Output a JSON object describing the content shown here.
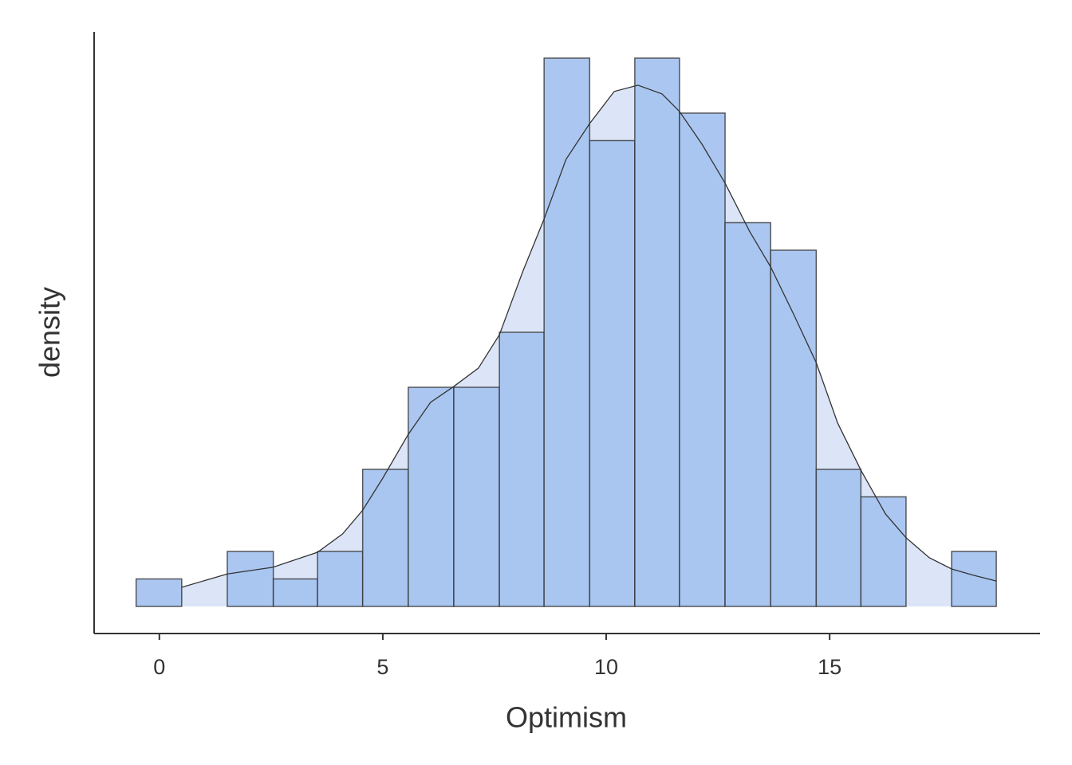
{
  "chart_data": {
    "type": "histogram",
    "x_label": "Optimism",
    "y_label": "density",
    "bins": [
      -0.52,
      0.5,
      1.52,
      2.55,
      3.54,
      4.55,
      5.57,
      6.59,
      7.61,
      8.61,
      9.63,
      10.64,
      11.64,
      12.66,
      13.68,
      14.7,
      15.7,
      16.71,
      17.73,
      18.73
    ],
    "values": [
      0.0066,
      0,
      0.0132,
      0.0066,
      0.0132,
      0.0329,
      0.0526,
      0.0526,
      0.0658,
      0.1316,
      0.1118,
      0.1316,
      0.1184,
      0.0921,
      0.0855,
      0.0329,
      0.0263,
      0,
      0.0132
    ],
    "color": "#a6c4f0",
    "density": {
      "x": [
        0.5,
        1.52,
        2.54,
        3.54,
        4.1,
        4.55,
        5,
        5.57,
        6.07,
        6.59,
        7.14,
        7.61,
        8.13,
        8.61,
        9.1,
        9.63,
        10.18,
        10.71,
        11.25,
        11.64,
        12.14,
        12.66,
        13.21,
        13.68,
        14.2,
        14.7,
        15.18,
        15.7,
        16.25,
        16.71,
        17.23,
        17.73,
        18.21,
        18.73
      ],
      "y": [
        0.0046,
        0.0078,
        0.0094,
        0.013,
        0.0174,
        0.0231,
        0.0308,
        0.0413,
        0.049,
        0.0528,
        0.0572,
        0.0652,
        0.0803,
        0.093,
        0.1073,
        0.1159,
        0.1236,
        0.1251,
        0.123,
        0.1188,
        0.111,
        0.1016,
        0.09,
        0.0815,
        0.07,
        0.0585,
        0.044,
        0.0327,
        0.0222,
        0.0165,
        0.0117,
        0.009,
        0.0075,
        0.0061
      ],
      "color": "#dbe5f7"
    },
    "xlim": [
      -1.46,
      19.71
    ],
    "ylim": [
      -0.0065,
      0.1379
    ],
    "xticks": [
      0,
      5,
      10,
      15
    ]
  }
}
